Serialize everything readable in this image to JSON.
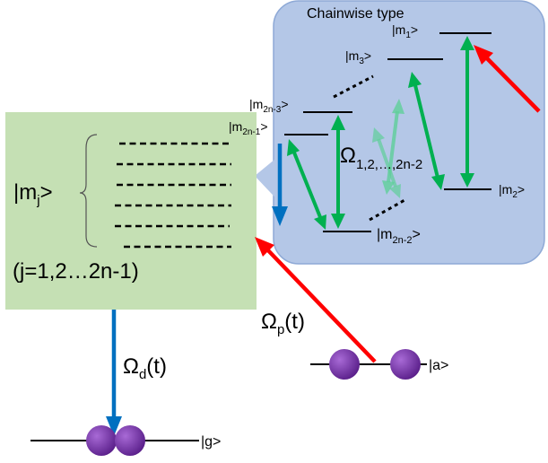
{
  "colors": {
    "chain_box_fill": "#b4c7e7",
    "chain_box_stroke": "#8ea9d6",
    "green_box_fill": "#c5e0b4",
    "pump_arrow": "#ff0000",
    "dump_arrow": "#0070c0",
    "coupling_arrow": "#00b050",
    "coupling_arrow_faded": "#5fcf9a",
    "atom": "#7030a0",
    "level_line": "#000000"
  },
  "chain_box": {
    "title": "Chainwise type",
    "coupling_label": "Ω",
    "coupling_subscript": "1,2,…,2n-2",
    "levels": {
      "m1": {
        "base": "|m",
        "sub": "1",
        "end": ">"
      },
      "m3": {
        "base": "|m",
        "sub": "3",
        "end": ">"
      },
      "m2n3": {
        "base": "|m",
        "sub": "2n-3",
        "end": ">"
      },
      "m2n1": {
        "base": "|m",
        "sub": "2n-1",
        "end": ">"
      },
      "m2": {
        "base": "|m",
        "sub": "2",
        "end": ">"
      },
      "m2n2": {
        "base": "|m",
        "sub": "2n-2",
        "end": ">"
      }
    }
  },
  "green_box": {
    "state": {
      "base": "|m",
      "sub": "j",
      "end": ">"
    },
    "range": "(j=1,2…2n-1)",
    "dash_rows": 6
  },
  "fields": {
    "pump": {
      "base": "Ω",
      "sub": "p",
      "end": "(t)"
    },
    "dump": {
      "base": "Ω",
      "sub": "d",
      "end": "(t)"
    }
  },
  "states": {
    "a": "|a>",
    "g": "|g>"
  },
  "icons": {
    "atom": "purple-sphere",
    "pump": "red-arrow",
    "dump": "blue-arrow",
    "coupling": "green-double-arrow"
  }
}
